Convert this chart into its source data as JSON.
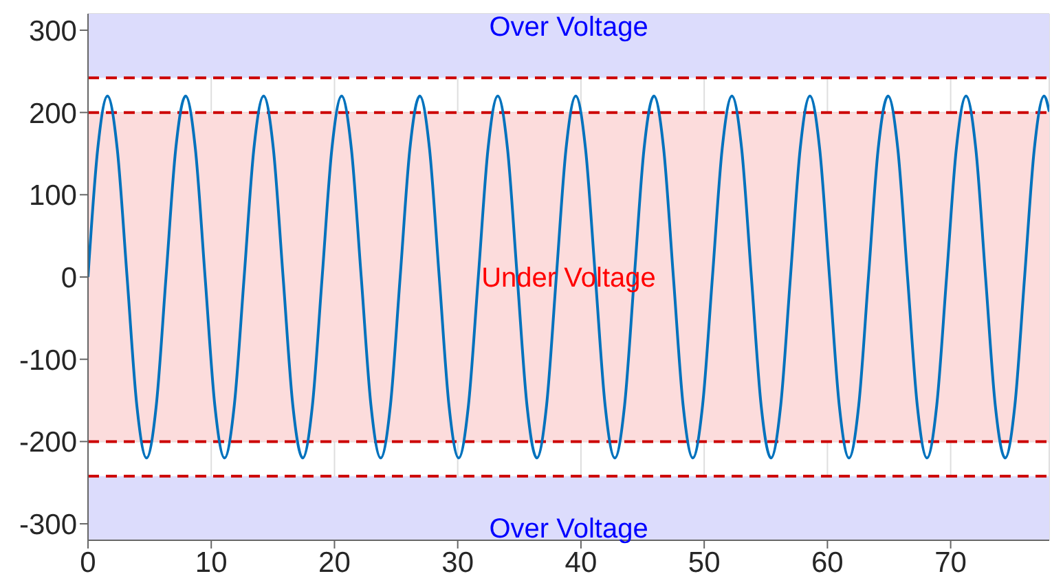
{
  "chart_data": {
    "type": "line",
    "x": [
      0,
      0.79,
      1.58,
      2.37,
      3.17,
      3.96,
      4.75,
      5.54,
      6.33,
      7.12,
      7.92,
      8.71,
      9.5,
      10.29,
      11.08,
      11.87,
      12.67,
      13.46,
      14.25,
      15.04,
      15.83,
      16.62,
      17.42,
      18.21,
      19.0,
      19.79,
      20.58,
      21.37,
      22.17,
      22.96,
      23.75,
      24.54,
      25.33,
      26.12,
      26.92,
      27.71,
      28.5,
      29.29,
      30.08,
      30.87,
      31.67,
      32.46,
      33.25,
      34.04,
      34.83,
      35.62,
      36.42,
      37.21,
      38.0,
      38.79,
      39.58,
      40.37,
      41.17,
      41.96,
      42.75,
      43.54,
      44.33,
      45.12,
      45.92,
      46.71,
      47.5,
      48.29,
      49.08,
      49.87,
      50.67,
      51.46,
      52.25,
      53.04,
      53.83,
      54.62,
      55.42,
      56.21,
      57.0,
      57.79,
      58.58,
      59.37,
      60.17,
      60.96,
      61.75,
      62.54,
      63.33,
      64.12,
      64.92,
      65.71,
      66.5,
      67.29,
      68.08,
      68.87,
      69.67,
      70.46,
      71.25,
      72.04,
      72.83,
      73.62,
      74.42,
      75.21,
      76.0,
      76.79,
      77.58,
      78.0
    ],
    "series": [
      {
        "color": "#0072bd",
        "values": [
          0,
          156,
          220,
          156,
          0,
          -156,
          -220,
          -156,
          0,
          156,
          220,
          156,
          0,
          -156,
          -220,
          -156,
          0,
          156,
          220,
          156,
          0,
          -156,
          -220,
          -156,
          0,
          156,
          220,
          156,
          0,
          -156,
          -220,
          -156,
          0,
          156,
          220,
          156,
          0,
          -156,
          -220,
          -156,
          0,
          156,
          220,
          156,
          0,
          -156,
          -220,
          -156,
          0,
          156,
          220,
          156,
          0,
          -156,
          -220,
          -156,
          0,
          156,
          220,
          156,
          0,
          -156,
          -220,
          -156,
          0,
          156,
          220,
          156,
          0,
          -156,
          -220,
          -156,
          0,
          156,
          220,
          156,
          0,
          -156,
          -220,
          -156,
          0,
          156,
          220,
          156,
          0,
          -156,
          -220,
          -156,
          0,
          156,
          220,
          156,
          0,
          -156,
          -220,
          -156,
          0,
          156,
          220,
          201
        ]
      }
    ],
    "xlim": [
      0,
      78
    ],
    "xticks": [
      0,
      10,
      20,
      30,
      40,
      50,
      60,
      70
    ],
    "ylim": [
      -320,
      320
    ],
    "yticks": [
      -300,
      -200,
      -100,
      0,
      100,
      200,
      300
    ],
    "grid": true,
    "line_style": "solid",
    "marker": "none",
    "bands": [
      {
        "axis": "y",
        "from": 242,
        "to": 320,
        "label": "Over Voltage",
        "color": "#dcdcfc"
      },
      {
        "axis": "y",
        "from": -200,
        "to": 200,
        "label": "Under Voltage",
        "color": "#fcdcdc"
      },
      {
        "axis": "y",
        "from": -320,
        "to": -242,
        "label": "Over Voltage",
        "color": "#dcdcfc"
      }
    ],
    "ref_lines": [
      {
        "axis": "y",
        "value": 242,
        "color": "#cc0000",
        "line_style": "dashed"
      },
      {
        "axis": "y",
        "value": 200,
        "color": "#cc0000",
        "line_style": "dashed"
      },
      {
        "axis": "y",
        "value": -200,
        "color": "#cc0000",
        "line_style": "dashed"
      },
      {
        "axis": "y",
        "value": -242,
        "color": "#cc0000",
        "line_style": "dashed"
      }
    ]
  }
}
